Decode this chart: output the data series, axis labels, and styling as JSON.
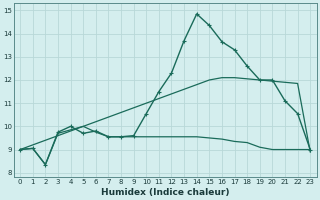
{
  "xlabel": "Humidex (Indice chaleur)",
  "bg_color": "#d4eeee",
  "grid_color": "#b8d8d8",
  "line_color": "#1a6b5a",
  "xlim": [
    -0.5,
    23.5
  ],
  "ylim": [
    7.8,
    15.3
  ],
  "xticks": [
    0,
    1,
    2,
    3,
    4,
    5,
    6,
    7,
    8,
    9,
    10,
    11,
    12,
    13,
    14,
    15,
    16,
    17,
    18,
    19,
    20,
    21,
    22,
    23
  ],
  "yticks": [
    8,
    9,
    10,
    11,
    12,
    13,
    14,
    15
  ],
  "line1_x": [
    0,
    1,
    2,
    3,
    4,
    5,
    6,
    7,
    8,
    9,
    10,
    11,
    12,
    13,
    14,
    15,
    16,
    17,
    18,
    19,
    20,
    21,
    22,
    23
  ],
  "line1_y": [
    9.0,
    9.05,
    8.35,
    9.7,
    9.85,
    10.0,
    9.75,
    9.55,
    9.55,
    9.55,
    9.55,
    9.55,
    9.55,
    9.55,
    9.55,
    9.5,
    9.45,
    9.35,
    9.3,
    9.1,
    9.0,
    9.0,
    9.0,
    9.0
  ],
  "line2_x": [
    0,
    1,
    2,
    3,
    4,
    5,
    6,
    7,
    8,
    9,
    10,
    11,
    12,
    13,
    14,
    15,
    16,
    17,
    18,
    19,
    20,
    21,
    22,
    23
  ],
  "line2_y": [
    9.0,
    9.05,
    8.35,
    9.75,
    10.0,
    9.7,
    9.8,
    9.55,
    9.55,
    9.6,
    10.55,
    11.5,
    12.3,
    13.7,
    14.85,
    14.35,
    13.65,
    13.3,
    12.6,
    12.0,
    12.0,
    11.1,
    10.55,
    9.0
  ],
  "line3_x": [
    0,
    1,
    2,
    3,
    4,
    5,
    6,
    7,
    8,
    9,
    10,
    11,
    12,
    13,
    14,
    15,
    16,
    17,
    18,
    19,
    20,
    21,
    22,
    23
  ],
  "line3_y": [
    9.0,
    9.2,
    9.4,
    9.6,
    9.8,
    10.0,
    10.2,
    10.4,
    10.6,
    10.8,
    11.0,
    11.2,
    11.4,
    11.6,
    11.8,
    12.0,
    12.1,
    12.1,
    12.05,
    12.0,
    11.95,
    11.9,
    11.85,
    8.9
  ]
}
